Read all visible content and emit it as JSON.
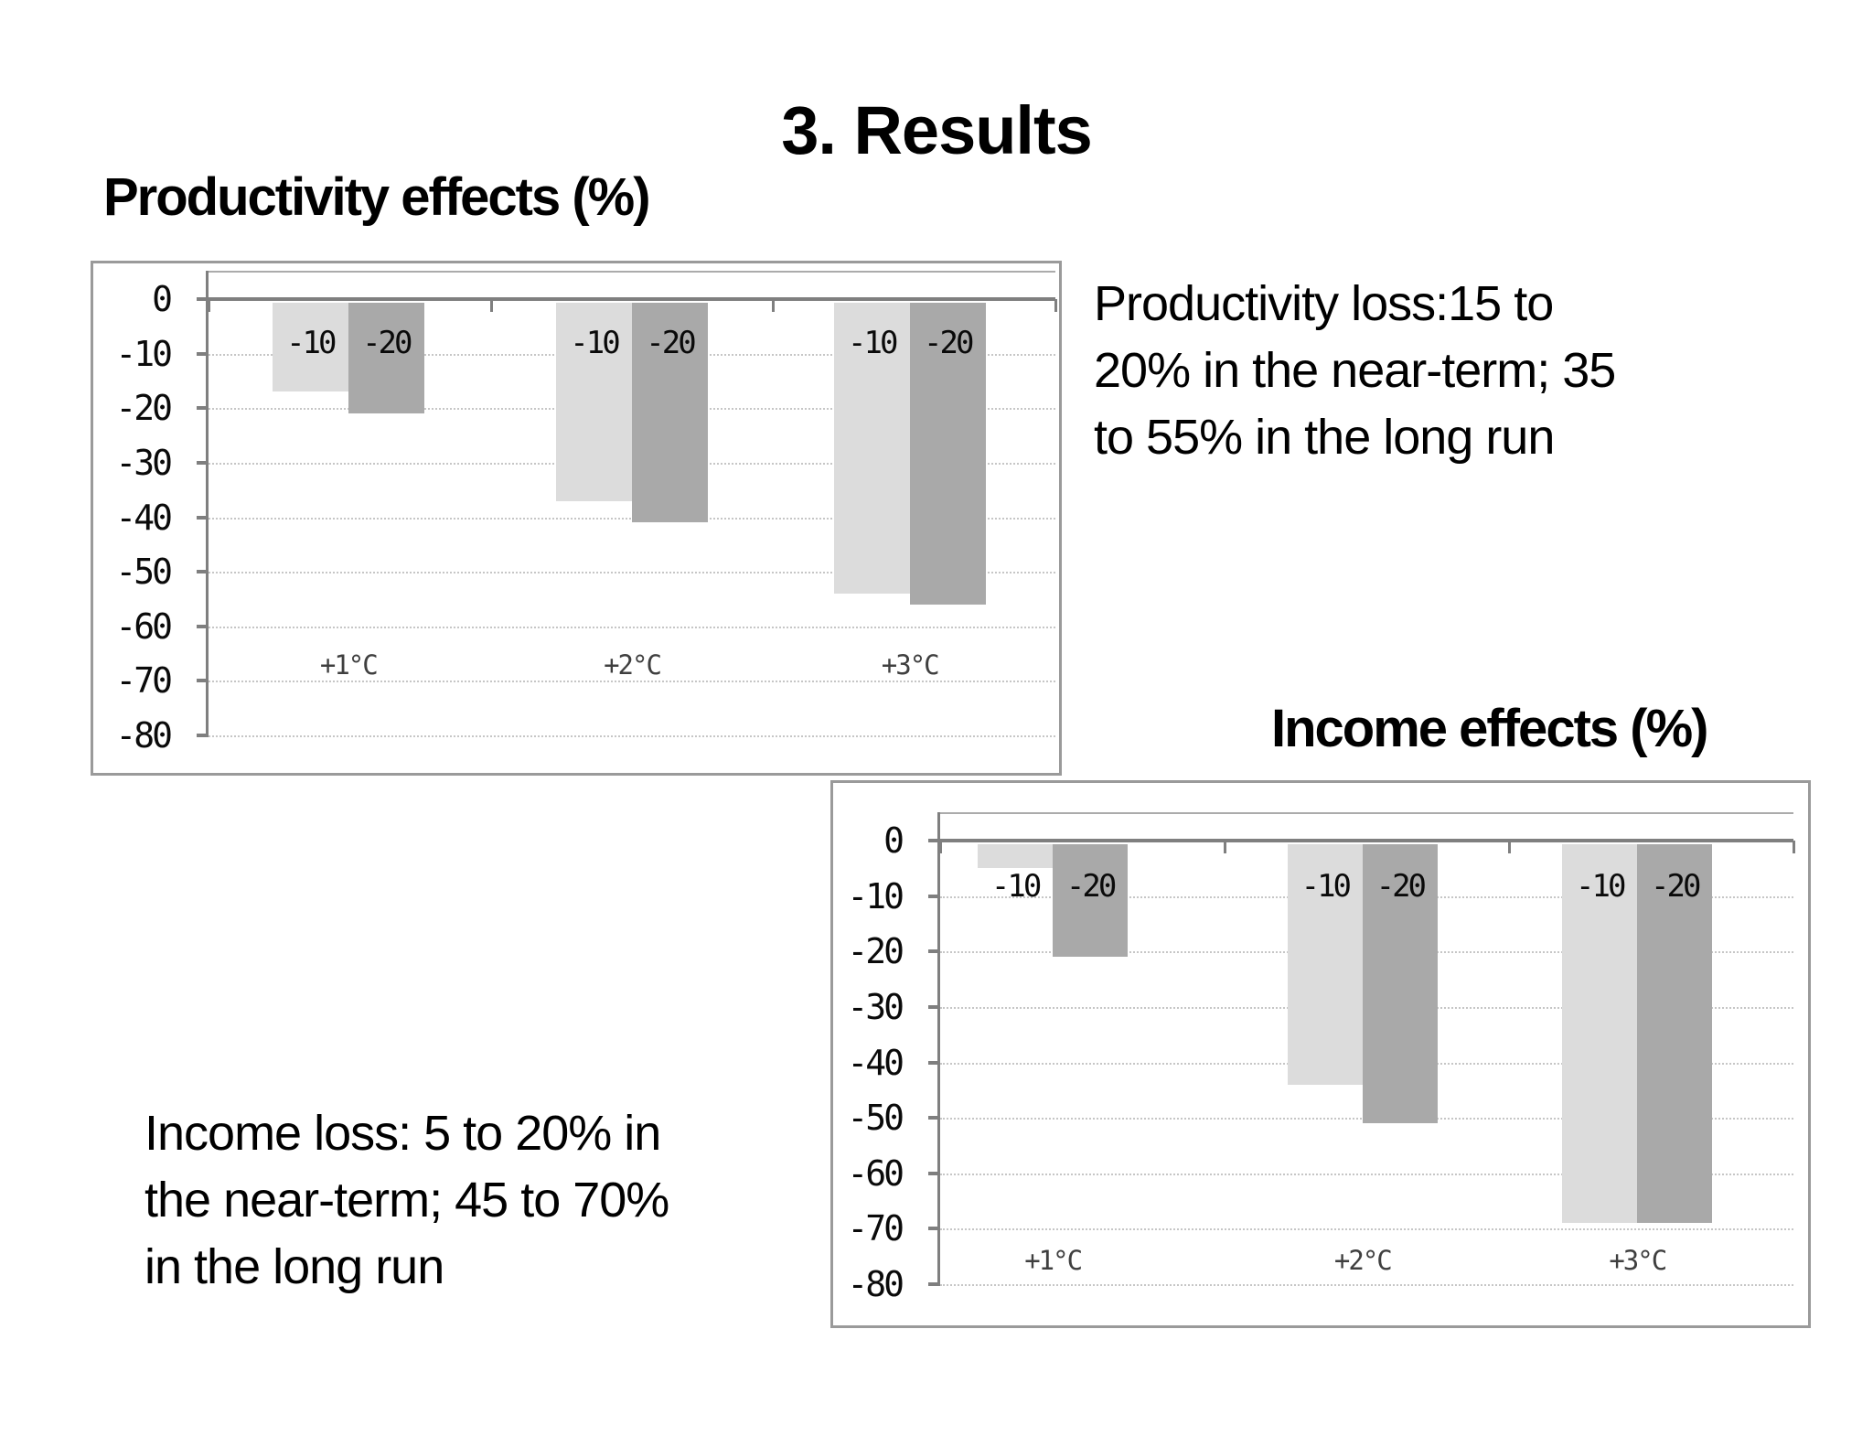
{
  "slide": {
    "title": "3. Results",
    "productivity_note": {
      "lines": [
        "Productivity loss:15 to",
        "20% in the near-term; 35",
        "to 55% in the long run"
      ]
    },
    "income_note": {
      "lines": [
        "Income loss: 5 to 20% in",
        "the near-term; 45 to 70%",
        "in the long run"
      ]
    }
  },
  "chart_data": [
    {
      "type": "bar",
      "title": "Productivity effects (%)",
      "categories": [
        "+1°C",
        "+2°C",
        "+3°C"
      ],
      "series": [
        {
          "name": "-10",
          "color": "#dcdcdc",
          "values": [
            -17,
            -37,
            -54
          ]
        },
        {
          "name": "-20",
          "color": "#a9a9a9",
          "values": [
            -21,
            -41,
            -56
          ]
        }
      ],
      "xlabel": "",
      "ylabel": "",
      "ylim": [
        -80,
        0
      ],
      "yticks": [
        0,
        -10,
        -20,
        -30,
        -40,
        -50,
        -60,
        -70,
        -80
      ],
      "grid": "horizontal-dotted",
      "legend": "none",
      "bar_labels": "series name printed at top of each bar",
      "axis_color": "#7f7f7f",
      "gridline_color": "#c6c6c6"
    },
    {
      "type": "bar",
      "title": "Income effects (%)",
      "categories": [
        "+1°C",
        "+2°C",
        "+3°C"
      ],
      "series": [
        {
          "name": "-10",
          "color": "#dcdcdc",
          "values": [
            -5,
            -44,
            -69
          ]
        },
        {
          "name": "-20",
          "color": "#a9a9a9",
          "values": [
            -21,
            -51,
            -69
          ]
        }
      ],
      "xlabel": "",
      "ylabel": "",
      "ylim": [
        -80,
        0
      ],
      "yticks": [
        0,
        -10,
        -20,
        -30,
        -40,
        -50,
        -60,
        -70,
        -80
      ],
      "grid": "horizontal-dotted",
      "legend": "none",
      "bar_labels": "series name printed at top of each bar",
      "axis_color": "#7f7f7f",
      "gridline_color": "#c6c6c6"
    }
  ]
}
